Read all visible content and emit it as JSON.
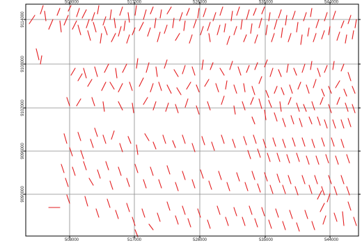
{
  "map": {
    "colors": {
      "lineament": "#e31a1c",
      "grid": "#8a8a8a",
      "frame": "#000000",
      "background": "#ffffff"
    },
    "x_ticks": [
      "508000",
      "517000",
      "526000",
      "535000",
      "544000"
    ],
    "y_ticks": [
      "9114000",
      "9108000",
      "9102000",
      "9096000",
      "9090000"
    ]
  }
}
